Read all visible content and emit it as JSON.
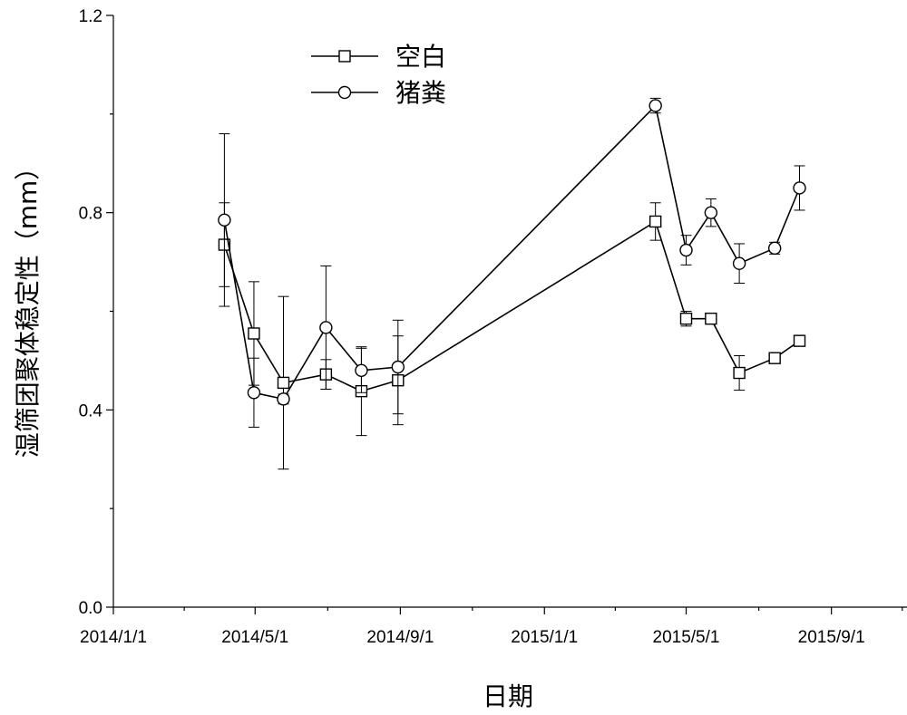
{
  "chart_data": {
    "type": "line",
    "title": "",
    "xlabel": "日期",
    "ylabel": "湿筛团聚体稳定性（mm）",
    "xlim": [
      "2014/1/1",
      "2015/11/4"
    ],
    "ylim": [
      0.0,
      1.2
    ],
    "x_ticks": [
      "2014/1/1",
      "2014/5/1",
      "2014/9/1",
      "2015/1/1",
      "2015/5/1",
      "2015/9/1"
    ],
    "y_ticks": [
      "0.0",
      "0.4",
      "0.8",
      "1.2"
    ],
    "legend_position": "top-left",
    "x": [
      "2014/4/5",
      "2014/4/30",
      "2014/5/25",
      "2014/6/30",
      "2014/7/30",
      "2014/8/30",
      "2015/4/5",
      "2015/5/1",
      "2015/5/22",
      "2015/6/15",
      "2015/7/15",
      "2015/8/5"
    ],
    "series": [
      {
        "name": "空白",
        "marker": "square",
        "values": [
          0.735,
          0.555,
          0.455,
          0.472,
          0.438,
          0.46,
          0.782,
          0.585,
          0.585,
          0.475,
          0.505,
          0.54
        ],
        "errors": [
          0.085,
          0.105,
          0.175,
          0.03,
          0.09,
          0.09,
          0.038,
          0.015,
          0.008,
          0.035,
          0.008,
          0.005
        ]
      },
      {
        "name": "猪粪",
        "marker": "circle",
        "values": [
          0.785,
          0.435,
          0.422,
          0.567,
          0.48,
          0.487,
          1.017,
          0.724,
          0.8,
          0.697,
          0.728,
          0.85
        ],
        "errors": [
          0.175,
          0.07,
          0.01,
          0.125,
          0.045,
          0.095,
          0.015,
          0.03,
          0.028,
          0.04,
          0.012,
          0.045
        ]
      }
    ]
  }
}
